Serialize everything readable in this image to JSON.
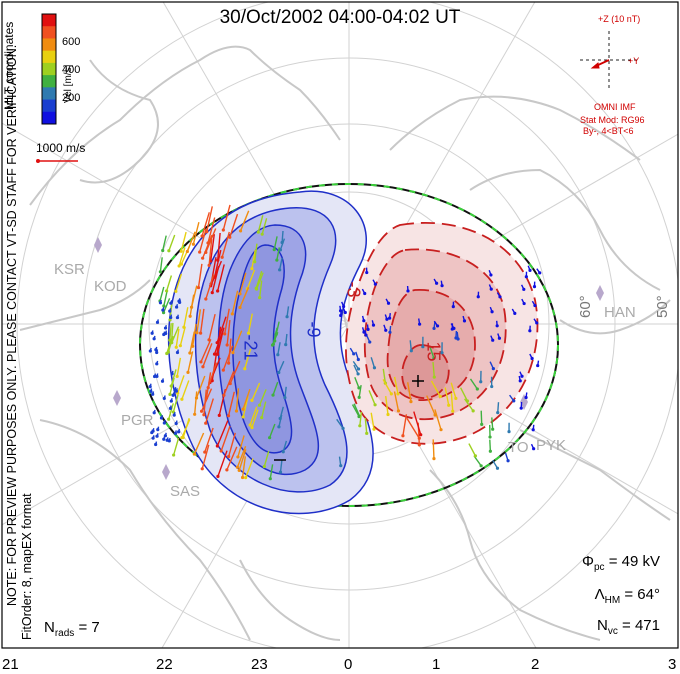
{
  "title": "30/Oct/2002 04:00-04:02 UT",
  "side_note": {
    "line1": "NOTE: FOR PREVIEW PURPOSES ONLY. PLEASE CONTACT VT-SD STAFF FOR VERIFICATION.",
    "line2": "FitOrder: 8, mapEX format"
  },
  "coords_label": "MLT coordinates",
  "colorbar": {
    "title": "Vel [m/s]",
    "ticks": [
      "600",
      "400",
      "200"
    ],
    "colors": [
      "#e01010",
      "#f05020",
      "#f08c10",
      "#e8d010",
      "#9ed020",
      "#40b040",
      "#2f7ab0",
      "#1a3fd0",
      "#1010e0"
    ]
  },
  "velocity_scale": "1000 m/s",
  "imf": {
    "z_label": "+Z (10 nT)",
    "y_label": "+Y",
    "source": "OMNI IMF",
    "model": "Stat Mod: RG96",
    "model_params": "By-, 4<BT<6"
  },
  "stats": {
    "phi_pc": {
      "symbol": "Φ",
      "sub": "pc",
      "value": "= 49 kV"
    },
    "lambda_hm": {
      "symbol": "Λ",
      "sub": "HM",
      "value": "= 64°"
    },
    "n_vc": {
      "symbol": "N",
      "sub": "vc",
      "value": "= 471"
    },
    "n_rads": {
      "symbol": "N",
      "sub": "rads",
      "value": "= 7"
    }
  },
  "mlt_labels": [
    "21",
    "22",
    "23",
    "0",
    "1",
    "2",
    "3"
  ],
  "latitude_labels": [
    "60°",
    "50°"
  ],
  "stations": [
    "KSR",
    "KOD",
    "PGR",
    "SAS",
    "HAN",
    "PYK",
    "TO"
  ],
  "contour_labels": [
    "-21",
    "-9",
    "-3",
    "15"
  ],
  "markers": {
    "min": "–",
    "max": "+"
  },
  "colors": {
    "neg_fill_outer": "#e4e6f6",
    "neg_fill_inner": "#bcc2ee",
    "neg_fill_core": "#9ea4e6",
    "neg_line": "#1f2fc8",
    "pos_fill_outer": "#f7e4e4",
    "pos_fill_inner": "#eec4c4",
    "pos_line": "#c81f1f",
    "coast": "#c8c8c8",
    "grid": "#d2d2d2",
    "hmb_dash": "#3ad03a"
  }
}
